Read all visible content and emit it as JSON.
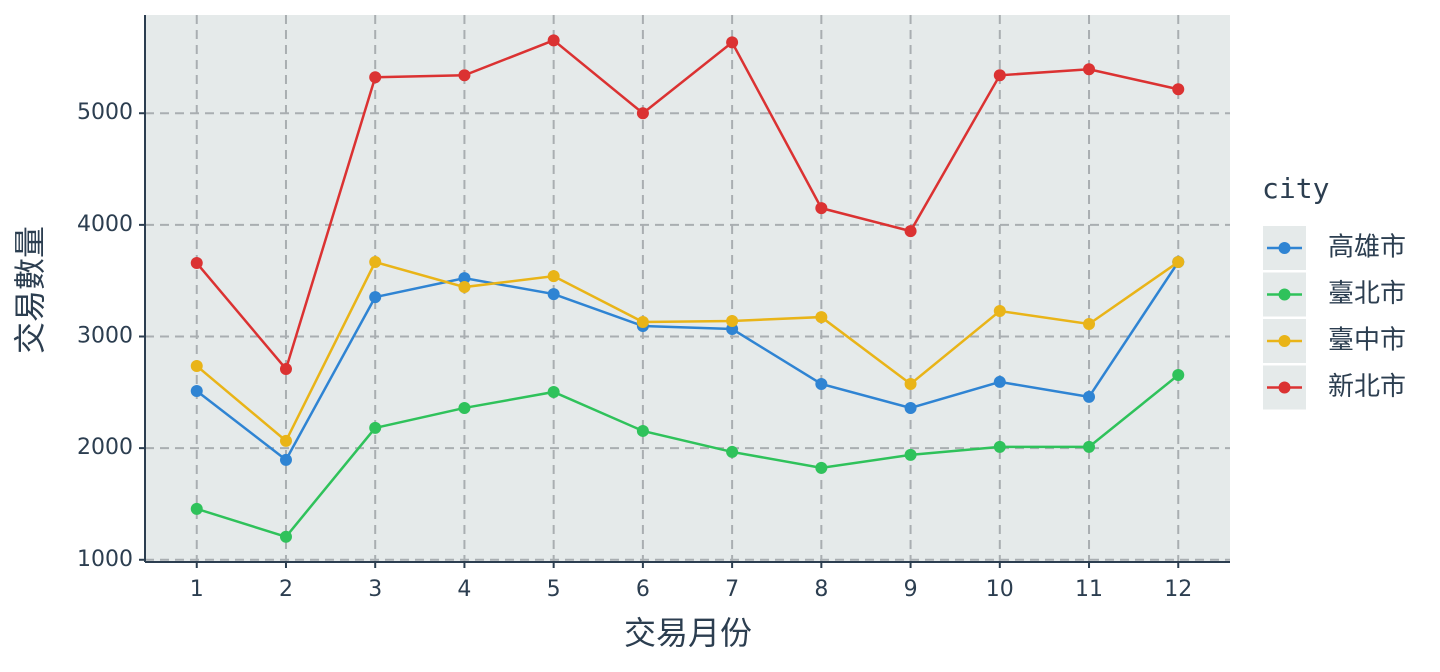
{
  "chart_data": {
    "type": "line",
    "x_label": "交易月份",
    "y_label": "交易數量",
    "legend_title": "city",
    "x": [
      1,
      2,
      3,
      4,
      5,
      6,
      7,
      8,
      9,
      10,
      11,
      12
    ],
    "series": [
      {
        "name": "高雄市",
        "color": "#2f84d3",
        "values": [
          2512,
          1895,
          3353,
          3523,
          3380,
          3094,
          3067,
          2575,
          2360,
          2593,
          2459,
          3667
        ]
      },
      {
        "name": "臺北市",
        "color": "#2fc25b",
        "values": [
          1456,
          1206,
          2181,
          2360,
          2503,
          2154,
          1966,
          1823,
          1940,
          2011,
          2011,
          2655
        ]
      },
      {
        "name": "臺中市",
        "color": "#e9b418",
        "values": [
          2736,
          2065,
          3667,
          3443,
          3541,
          3130,
          3139,
          3174,
          2575,
          3228,
          3112,
          3667
        ]
      },
      {
        "name": "新北市",
        "color": "#db3232",
        "values": [
          3658,
          2709,
          5322,
          5340,
          5653,
          5000,
          5635,
          4150,
          3944,
          5340,
          5394,
          5215
        ]
      }
    ],
    "xlim": [
      0.42,
      12.58
    ],
    "ylim": [
      980,
      5880
    ],
    "xticks": [
      1,
      2,
      3,
      4,
      5,
      6,
      7,
      8,
      9,
      10,
      11,
      12
    ],
    "yticks": [
      1000,
      2000,
      3000,
      4000,
      5000
    ],
    "grid": true,
    "legend_position": "right"
  }
}
